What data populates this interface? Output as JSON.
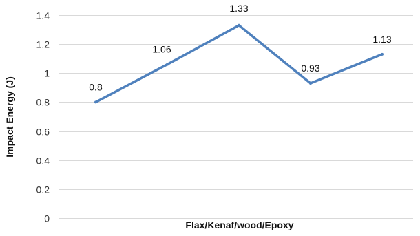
{
  "chart_data": {
    "type": "line",
    "x": [
      1,
      2,
      3,
      4,
      5
    ],
    "series": [
      {
        "values": [
          0.8,
          1.06,
          1.33,
          0.93,
          1.13
        ],
        "color": "#4f81bd"
      }
    ],
    "data_labels": [
      "0.8",
      "1.06",
      "1.33",
      "0.93",
      "1.13"
    ],
    "xlabel": "Flax/Kenaf/wood/Epoxy",
    "ylabel": "Impact Energy (J)",
    "ylim": [
      0,
      1.4
    ],
    "yticks": [
      0,
      0.2,
      0.4,
      0.6,
      0.8,
      1,
      1.2,
      1.4
    ],
    "ytick_labels": [
      "0",
      "0.2",
      "0.4",
      "0.6",
      "0.8",
      "1",
      "1.2",
      "1.4"
    ],
    "grid": true,
    "legend": "none",
    "gridline_color": "#d9d9d9"
  }
}
